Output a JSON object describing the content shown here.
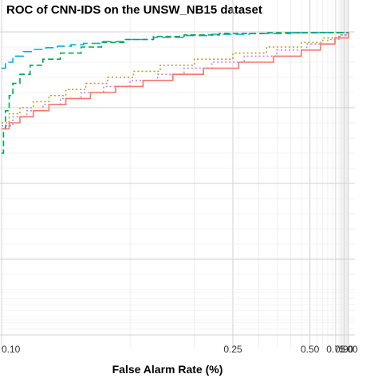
{
  "chart_data": {
    "type": "line",
    "title": "ROC of CNN-IDS on the UNSW_NB15 dataset",
    "xlabel": "False Alarm Rate (%)",
    "ylabel": "",
    "x_scale": "reciprocal",
    "xlim": [
      0.1,
      1.0
    ],
    "ylim": [
      0.0,
      1.0
    ],
    "x_ticks": [
      {
        "value": 0.1,
        "label": "0.10"
      },
      {
        "value": 0.25,
        "label": "0.25"
      },
      {
        "value": 0.5,
        "label": "0.50"
      },
      {
        "value": 0.75,
        "label": "0.75"
      },
      {
        "value": 0.9,
        "label": "0.90"
      },
      {
        "value": 1.0,
        "label": "1.00"
      }
    ],
    "grid": true,
    "legend": "none",
    "series": [
      {
        "color": "#00A9E0",
        "dash": "long-dash",
        "x": [
          0.1,
          0.101,
          0.103,
          0.106,
          0.109,
          0.113,
          0.117,
          0.122,
          0.127,
          0.135,
          0.147,
          0.165,
          0.19,
          0.22,
          0.28,
          0.4,
          0.6,
          1.0
        ],
        "y": [
          0.88,
          0.9,
          0.92,
          0.935,
          0.942,
          0.948,
          0.953,
          0.958,
          0.962,
          0.968,
          0.975,
          0.982,
          0.988,
          0.992,
          0.995,
          0.997,
          0.998,
          1.0
        ]
      },
      {
        "color": "#00A651",
        "dash": "dash",
        "x": [
          0.1,
          0.1005,
          0.101,
          0.102,
          0.103,
          0.105,
          0.108,
          0.112,
          0.118,
          0.126,
          0.135,
          0.147,
          0.165,
          0.19,
          0.23,
          0.32,
          0.5,
          1.0
        ],
        "y": [
          0.6,
          0.68,
          0.74,
          0.79,
          0.83,
          0.86,
          0.89,
          0.91,
          0.93,
          0.95,
          0.965,
          0.975,
          0.985,
          0.99,
          0.995,
          0.997,
          0.998,
          1.0
        ]
      },
      {
        "color": "#B5A21A",
        "dash": "dot",
        "x": [
          0.1,
          0.102,
          0.105,
          0.109,
          0.114,
          0.12,
          0.128,
          0.138,
          0.152,
          0.17,
          0.2,
          0.25,
          0.32,
          0.45,
          0.6,
          0.8,
          1.0
        ],
        "y": [
          0.7,
          0.73,
          0.75,
          0.77,
          0.79,
          0.81,
          0.83,
          0.85,
          0.87,
          0.89,
          0.91,
          0.93,
          0.95,
          0.965,
          0.98,
          0.99,
          1.0
        ]
      },
      {
        "color": "#C77CFF",
        "dash": "dot",
        "x": [
          0.1,
          0.103,
          0.107,
          0.112,
          0.118,
          0.126,
          0.136,
          0.15,
          0.168,
          0.19,
          0.22,
          0.27,
          0.35,
          0.48,
          0.65,
          0.82,
          1.0
        ],
        "y": [
          0.69,
          0.72,
          0.74,
          0.76,
          0.78,
          0.8,
          0.82,
          0.84,
          0.86,
          0.88,
          0.9,
          0.92,
          0.94,
          0.96,
          0.975,
          0.99,
          1.0
        ]
      },
      {
        "color": "#F8766D",
        "dash": "solid",
        "x": [
          0.1,
          0.102,
          0.105,
          0.109,
          0.114,
          0.12,
          0.13,
          0.142,
          0.158,
          0.18,
          0.21,
          0.26,
          0.34,
          0.45,
          0.58,
          0.74,
          1.0
        ],
        "y": [
          0.68,
          0.7,
          0.72,
          0.74,
          0.76,
          0.78,
          0.8,
          0.82,
          0.84,
          0.86,
          0.88,
          0.9,
          0.92,
          0.94,
          0.96,
          0.98,
          1.0
        ]
      }
    ]
  }
}
